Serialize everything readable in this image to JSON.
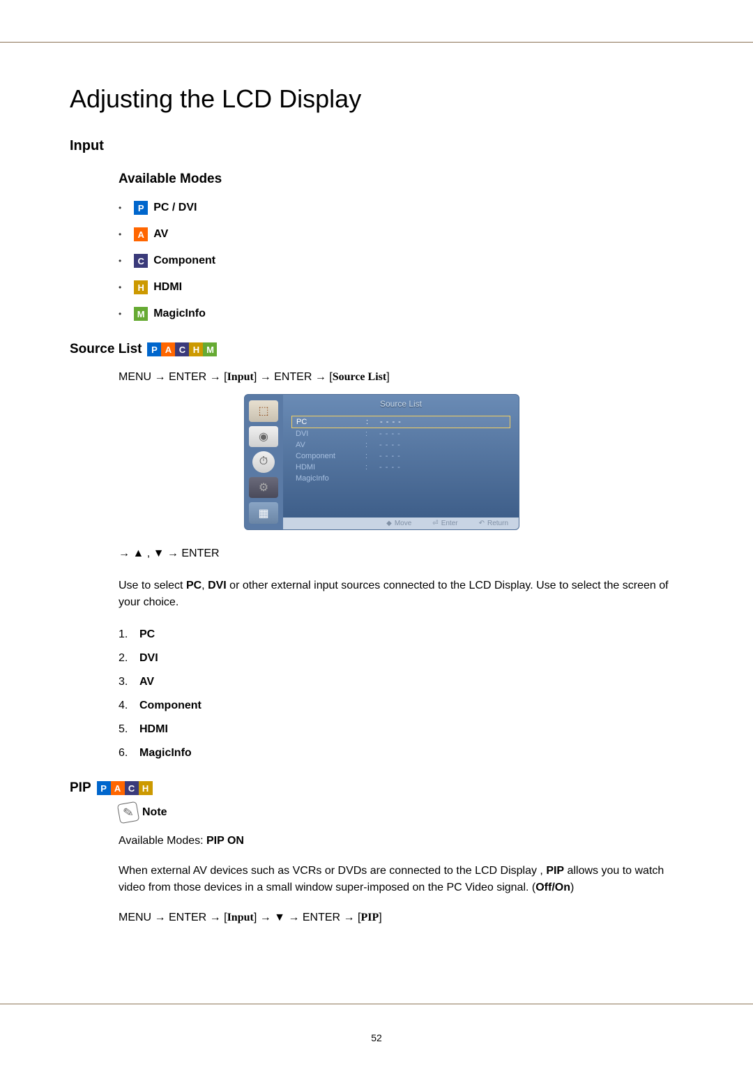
{
  "page_number": "52",
  "main_title": "Adjusting the LCD Display",
  "input_section": {
    "heading": "Input",
    "available_modes_heading": "Available Modes",
    "modes": [
      {
        "badge": "P",
        "color": "#0066cc",
        "label": "PC / DVI"
      },
      {
        "badge": "A",
        "color": "#ff6600",
        "label": "AV"
      },
      {
        "badge": "C",
        "color": "#3a3a7a",
        "label": "Component"
      },
      {
        "badge": "H",
        "color": "#cc9900",
        "label": "HDMI"
      },
      {
        "badge": "M",
        "color": "#66aa33",
        "label": "MagicInfo"
      }
    ]
  },
  "source_list": {
    "heading": "Source List",
    "badges": [
      "P",
      "A",
      "C",
      "H",
      "M"
    ],
    "nav_path": {
      "prefix": "MENU → ENTER → [",
      "part1": "Input",
      "mid": "] → ENTER → [",
      "part2": "Source List",
      "suffix": "]"
    },
    "osd": {
      "title": "Source List",
      "items": [
        {
          "label": "PC",
          "value": "- - - -",
          "selected": true
        },
        {
          "label": "DVI",
          "value": "- - - -",
          "selected": false
        },
        {
          "label": "AV",
          "value": "- - - -",
          "selected": false
        },
        {
          "label": "Component",
          "value": "- - - -",
          "selected": false
        },
        {
          "label": "HDMI",
          "value": "- - - -",
          "selected": false
        },
        {
          "label": "MagicInfo",
          "value": "",
          "selected": false
        }
      ],
      "footer": {
        "move": "Move",
        "enter": "Enter",
        "return": "Return"
      }
    },
    "nav_line_2": "→ ▲ , ▼ → ENTER",
    "description_prefix": "Use to select ",
    "description_bold1": "PC",
    "description_mid1": ", ",
    "description_bold2": "DVI",
    "description_suffix": " or other external input sources connected to the LCD Display. Use to select the screen of your choice.",
    "items": [
      "PC",
      "DVI",
      "AV",
      "Component",
      "HDMI",
      "MagicInfo"
    ]
  },
  "pip": {
    "heading": "PIP",
    "badges": [
      "P",
      "A",
      "C",
      "H"
    ],
    "note_label": "Note",
    "available_modes_text": "Available Modes: ",
    "available_modes_bold": "PIP ON",
    "description_pre": "When external AV devices such as VCRs or DVDs are connected to the LCD Display , ",
    "description_bold": "PIP",
    "description_mid": " allows you to watch video from those devices in a small window super-imposed on the PC Video signal. (",
    "description_bold2": "Off/On",
    "description_post": ")",
    "nav_path": {
      "prefix": "MENU → ENTER → [",
      "part1": "Input",
      "mid": "] → ▼ → ENTER → [",
      "part2": "PIP",
      "suffix": "]"
    }
  }
}
